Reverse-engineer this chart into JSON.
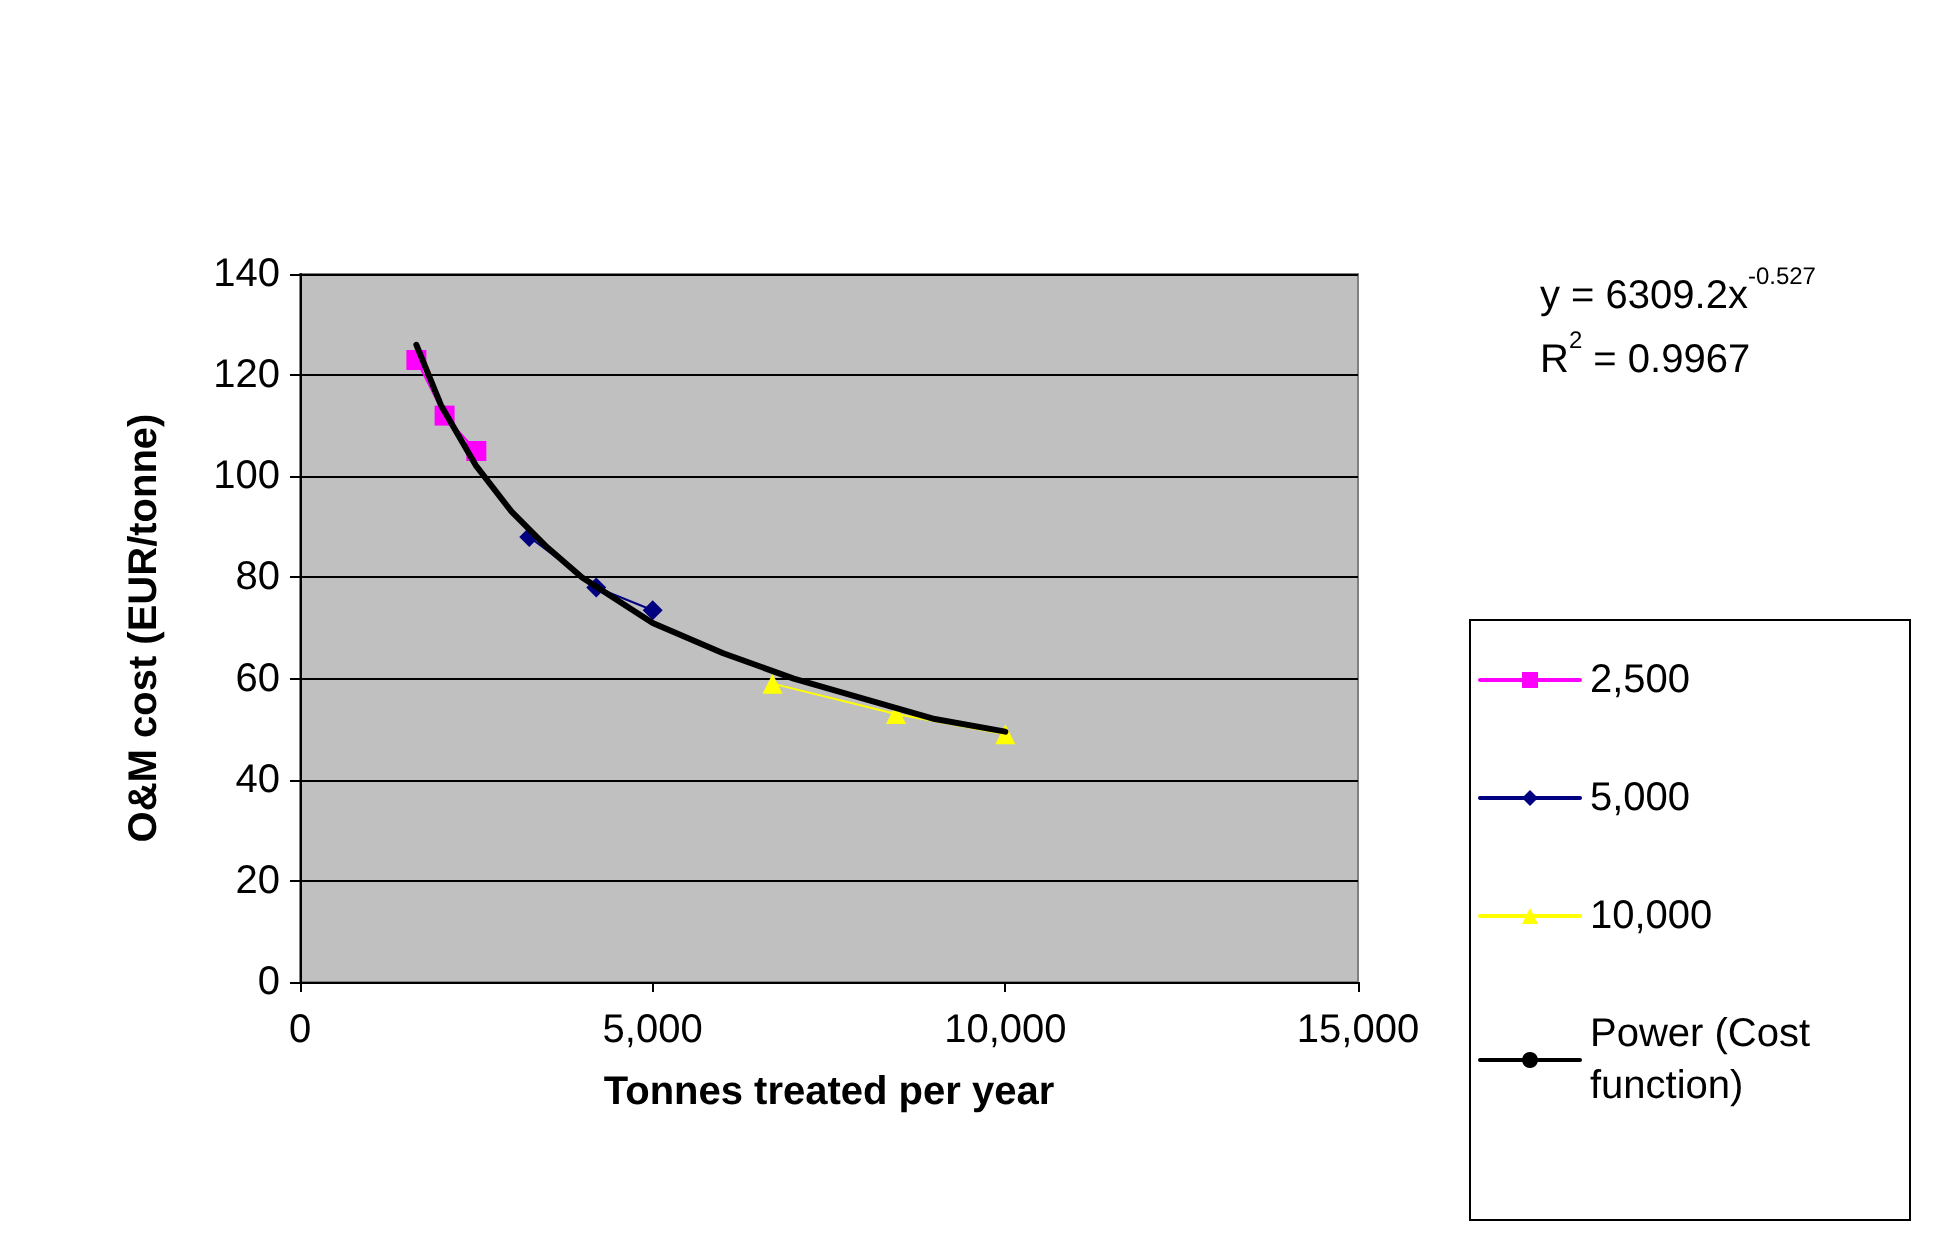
{
  "chart_data": {
    "type": "line",
    "xlabel": "Tonnes treated per year",
    "ylabel": "O&M cost (EUR/tonne)",
    "series": [
      {
        "name": "2,500",
        "color": "#ff00ff",
        "marker": "square",
        "x": [
          1650,
          2050,
          2500
        ],
        "values": [
          123,
          112,
          105
        ]
      },
      {
        "name": "5,000",
        "color": "#000080",
        "marker": "diamond",
        "x": [
          3250,
          4200,
          5000
        ],
        "values": [
          88,
          78,
          73.5
        ]
      },
      {
        "name": "10,000",
        "color": "#ffff00",
        "marker": "triangle",
        "x": [
          6700,
          8450,
          10000
        ],
        "values": [
          59,
          53,
          49
        ]
      },
      {
        "name": "Power (Cost function)",
        "color": "#000000",
        "marker": "none",
        "x": [
          1650,
          2000,
          2500,
          3000,
          3500,
          4000,
          5000,
          6000,
          7000,
          8000,
          9000,
          10000
        ],
        "values": [
          126,
          114,
          102,
          93,
          86,
          80,
          71,
          65,
          60,
          56,
          52,
          49.5
        ]
      }
    ],
    "xlim": [
      0,
      15000
    ],
    "xticks": [
      {
        "value": 0,
        "label": "0"
      },
      {
        "value": 5000,
        "label": "5,000"
      },
      {
        "value": 10000,
        "label": "10,000"
      },
      {
        "value": 15000,
        "label": "15,000"
      }
    ],
    "ylim": [
      0,
      140
    ],
    "yticks": [
      0,
      20,
      40,
      60,
      80,
      100,
      120,
      140
    ],
    "grid": "y",
    "legend": "right",
    "line_style": "solid",
    "annotations": [
      "y = 6309.2x$^{-0.527}$",
      "R$^{2}$ = 0.9967"
    ]
  }
}
